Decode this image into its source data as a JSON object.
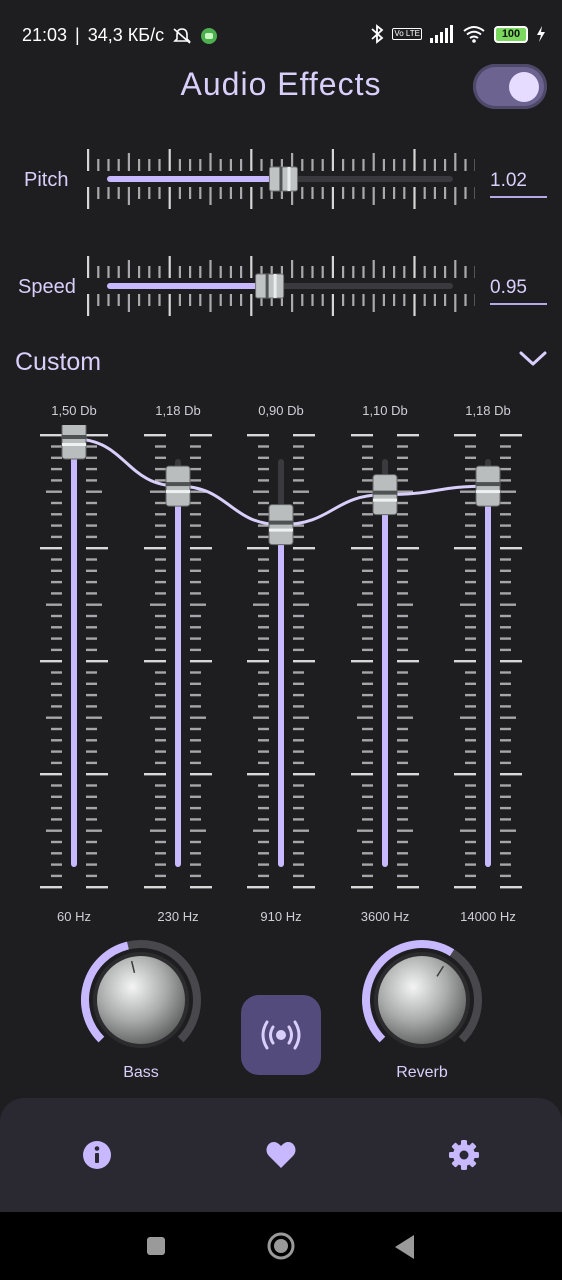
{
  "status_bar": {
    "time": "21:03",
    "speed": "34,3 КБ/с",
    "battery": "100",
    "lte": "Vo LTE"
  },
  "header": {
    "title": "Audio Effects",
    "toggle_on": true
  },
  "pitch": {
    "label": "Pitch",
    "value": "1.02",
    "level": 0.51
  },
  "speed": {
    "label": "Speed",
    "value": "0.95",
    "level": 0.47
  },
  "preset": {
    "label": "Custom",
    "icon": "chevron-down-icon"
  },
  "equalizer": {
    "bands": [
      {
        "db": "1,50 Db",
        "hz": "60 Hz",
        "level": 1.0
      },
      {
        "db": "1,18 Db",
        "hz": "230 Hz",
        "level": 0.89
      },
      {
        "db": "0,90 Db",
        "hz": "910 Hz",
        "level": 0.8
      },
      {
        "db": "1,10 Db",
        "hz": "3600 Hz",
        "level": 0.87
      },
      {
        "db": "1,18 Db",
        "hz": "14000 Hz",
        "level": 0.89
      }
    ]
  },
  "effects": {
    "bass": {
      "label": "Bass",
      "level": 0.45
    },
    "reverb": {
      "label": "Reverb",
      "level": 0.62
    },
    "center_icon": "surround-sound-icon"
  },
  "bottom_nav": {
    "items": [
      {
        "icon": "info-icon"
      },
      {
        "icon": "heart-icon"
      },
      {
        "icon": "gear-icon"
      }
    ]
  },
  "colors": {
    "accent": "#c7b8ff",
    "background": "#1e1d20",
    "nav_bg": "#2a2830",
    "button_bg": "#544b7d"
  }
}
